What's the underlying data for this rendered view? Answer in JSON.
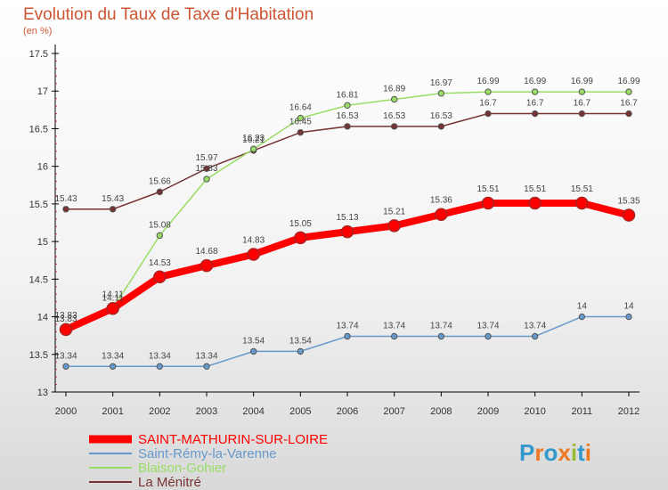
{
  "title": "Evolution du Taux de Taxe d'Habitation",
  "subtitle": "(en %)",
  "logo_text": "Proxiti",
  "chart_data": {
    "type": "line",
    "title": "Evolution du Taux de Taxe d'Habitation",
    "ylabel": "(en %)",
    "xlabel": "",
    "x": [
      "2000",
      "2001",
      "2002",
      "2003",
      "2004",
      "2005",
      "2006",
      "2007",
      "2008",
      "2009",
      "2010",
      "2011",
      "2012"
    ],
    "ylim": [
      13,
      17.5
    ],
    "yticks": [
      "13",
      "13.5",
      "14",
      "14.5",
      "15",
      "15.5",
      "16",
      "16.5",
      "17",
      "17.5"
    ],
    "grid": false,
    "legend_position": "bottom-left",
    "series": [
      {
        "name": "SAINT-MATHURIN-SUR-LOIRE",
        "color": "#ff0000",
        "values": [
          13.83,
          14.11,
          14.53,
          14.68,
          14.83,
          15.05,
          15.13,
          15.21,
          15.36,
          15.51,
          15.51,
          15.51,
          15.35
        ]
      },
      {
        "name": "Saint-Rémy-la-Varenne",
        "color": "#6699cc",
        "values": [
          13.34,
          13.34,
          13.34,
          13.34,
          13.54,
          13.54,
          13.74,
          13.74,
          13.74,
          13.74,
          13.74,
          14,
          14
        ]
      },
      {
        "name": "Blaison-Gohier",
        "color": "#99dd66",
        "values": [
          13.83,
          14.11,
          15.08,
          15.83,
          16.23,
          16.64,
          16.81,
          16.89,
          16.97,
          16.99,
          16.99,
          16.99,
          16.99
        ]
      },
      {
        "name": "La Ménitré",
        "color": "#773333",
        "values": [
          15.43,
          15.43,
          15.66,
          15.97,
          16.21,
          16.45,
          16.53,
          16.53,
          16.53,
          16.7,
          16.7,
          16.7,
          16.7
        ]
      }
    ]
  }
}
